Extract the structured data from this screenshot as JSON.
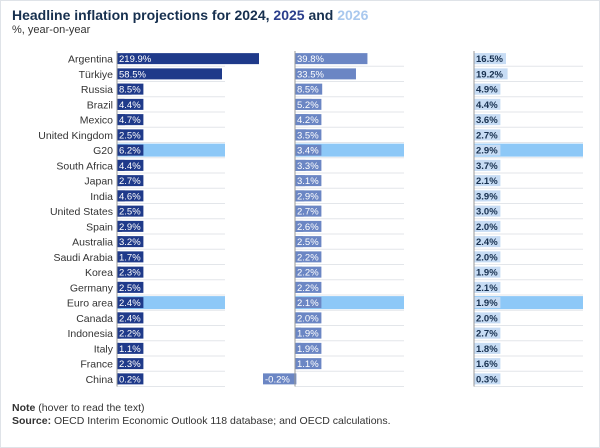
{
  "header": {
    "title_prefix": "Headline inflation projections for",
    "year_a": "2024",
    "sep": ",",
    "year_b": "2025",
    "and": "and",
    "year_c": "2026",
    "subtitle": "%, year-on-year"
  },
  "footer": {
    "note_label": "Note",
    "note_text": "(hover to read the text)",
    "source_label": "Source:",
    "source_text": "OECD Interim Economic Outlook 118 database; and OECD calculations."
  },
  "colors": {
    "title": "#17304f",
    "bar_2024": "#1f3a8a",
    "bar_2025": "#6b86c4",
    "bar_2026": "#c7dcf4",
    "highlight": "#8dc8f7",
    "text": "#333333"
  },
  "chart_data": {
    "type": "bar",
    "orientation": "horizontal",
    "layout": "small-multiples",
    "categories": [
      "Argentina",
      "Türkiye",
      "Russia",
      "Brazil",
      "Mexico",
      "United Kingdom",
      "G20",
      "South Africa",
      "Japan",
      "India",
      "United States",
      "Spain",
      "Australia",
      "Saudi Arabia",
      "Korea",
      "Germany",
      "Euro area",
      "Canada",
      "Indonesia",
      "Italy",
      "France",
      "China"
    ],
    "highlighted": [
      "G20",
      "Euro area"
    ],
    "series": [
      {
        "name": "2024",
        "values": [
          219.9,
          58.5,
          8.5,
          4.4,
          4.7,
          2.5,
          6.2,
          4.4,
          2.7,
          4.6,
          2.5,
          2.9,
          3.2,
          1.7,
          2.3,
          2.5,
          2.4,
          2.4,
          2.2,
          1.1,
          2.3,
          0.2
        ],
        "labels": [
          "219.9%",
          "58.5%",
          "8.5%",
          "4.4%",
          "4.7%",
          "2.5%",
          "6.2%",
          "4.4%",
          "2.7%",
          "4.6%",
          "2.5%",
          "2.9%",
          "3.2%",
          "1.7%",
          "2.3%",
          "2.5%",
          "2.4%",
          "2.4%",
          "2.2%",
          "1.1%",
          "2.3%",
          "0.2%"
        ]
      },
      {
        "name": "2025",
        "values": [
          39.8,
          33.5,
          8.5,
          5.2,
          4.2,
          3.5,
          3.4,
          3.3,
          3.1,
          2.9,
          2.7,
          2.6,
          2.5,
          2.2,
          2.2,
          2.2,
          2.1,
          2.0,
          1.9,
          1.9,
          1.1,
          -0.2
        ],
        "labels": [
          "39.8%",
          "33.5%",
          "8.5%",
          "5.2%",
          "4.2%",
          "3.5%",
          "3.4%",
          "3.3%",
          "3.1%",
          "2.9%",
          "2.7%",
          "2.6%",
          "2.5%",
          "2.2%",
          "2.2%",
          "2.2%",
          "2.1%",
          "2.0%",
          "1.9%",
          "1.9%",
          "1.1%",
          "-0.2%"
        ]
      },
      {
        "name": "2026",
        "values": [
          16.5,
          19.2,
          4.9,
          4.4,
          3.6,
          2.7,
          2.9,
          3.7,
          2.1,
          3.9,
          3.0,
          2.0,
          2.4,
          2.0,
          1.9,
          2.1,
          1.9,
          2.0,
          2.7,
          1.8,
          1.6,
          0.3
        ],
        "labels": [
          "16.5%",
          "19.2%",
          "4.9%",
          "4.4%",
          "3.6%",
          "2.7%",
          "2.9%",
          "3.7%",
          "2.1%",
          "3.9%",
          "3.0%",
          "2.0%",
          "2.4%",
          "2.0%",
          "1.9%",
          "2.1%",
          "1.9%",
          "2.0%",
          "2.7%",
          "1.8%",
          "1.6%",
          "0.3%"
        ]
      }
    ]
  }
}
